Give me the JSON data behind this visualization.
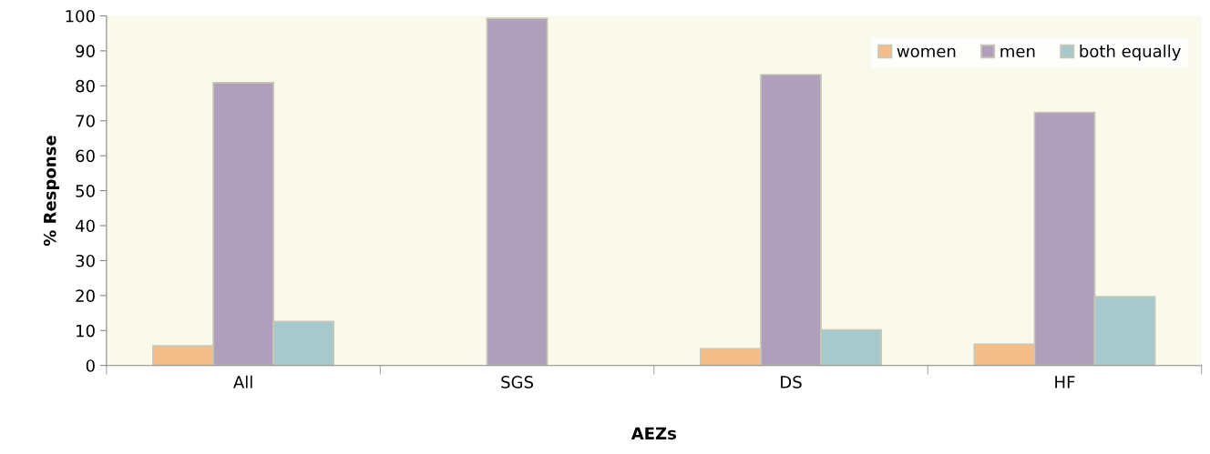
{
  "chart_data": {
    "type": "bar",
    "xlabel": "AEZs",
    "ylabel": "% Response",
    "categories": [
      "All",
      "SGS",
      "DS",
      "HF"
    ],
    "series": [
      {
        "name": "women",
        "color": "#f5be88",
        "values": [
          5.6,
          null,
          4.8,
          6.1
        ]
      },
      {
        "name": "men",
        "color": "#af9fbb",
        "values": [
          80.9,
          99.3,
          83.2,
          72.4
        ]
      },
      {
        "name": "both equally",
        "color": "#a7c9cb",
        "values": [
          12.6,
          null,
          10.2,
          19.7
        ]
      }
    ],
    "ylim": [
      0,
      100
    ],
    "yticks": [
      0,
      10,
      20,
      30,
      40,
      50,
      60,
      70,
      80,
      90,
      100
    ],
    "grid": false,
    "legend": "top right"
  }
}
